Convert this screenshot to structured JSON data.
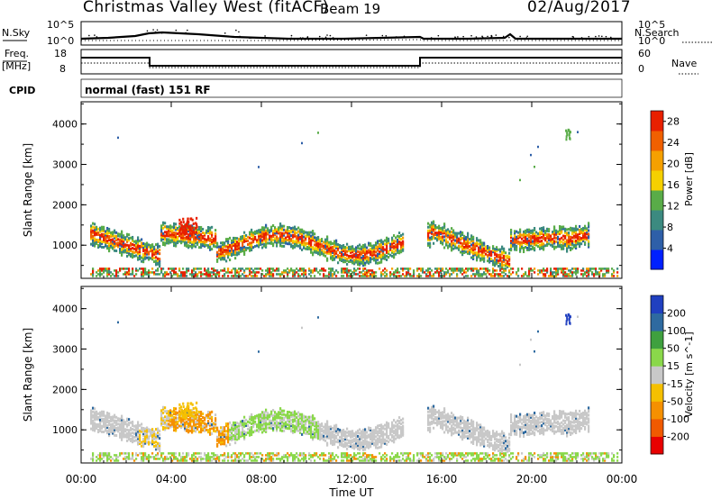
{
  "header": {
    "title": "Christmas Valley West (fitACF)",
    "beam": "Beam 19",
    "date": "02/Aug/2017"
  },
  "noise_panel": {
    "left_label": "N.Sky",
    "right_label": "N.Search",
    "left_ticks": [
      "10^5",
      "10^0"
    ],
    "right_ticks": [
      "10^5",
      "10^0"
    ]
  },
  "freq_panel": {
    "left_label_line1": "Freq.",
    "left_label_line2": "[MHz]",
    "right_label": "Nave",
    "left_ticks": [
      "18",
      "8"
    ],
    "right_ticks": [
      "60",
      "0"
    ]
  },
  "cpid": {
    "label": "CPID",
    "value": "normal (fast) 151 RF"
  },
  "colors": {
    "power": [
      "#0020ff",
      "#2e5fa8",
      "#3c8a80",
      "#59ac48",
      "#f5d000",
      "#f5a000",
      "#f06000",
      "#e82000"
    ],
    "velocity": [
      "#e80000",
      "#f05a00",
      "#f59000",
      "#f5c000",
      "#c8c8c8",
      "#8ad84a",
      "#3fa03f",
      "#2e6aa0",
      "#2040c0"
    ]
  },
  "chart_data": [
    {
      "type": "heatmap",
      "panel": "power",
      "xlabel": "",
      "ylabel": "Slant Range [km]",
      "x_range": [
        "00:00",
        "24:00"
      ],
      "ylim": [
        180,
        4550
      ],
      "yticks": [
        1000,
        2000,
        3000,
        4000
      ],
      "colorbar": {
        "label": "Power [dB]",
        "ticks": [
          4,
          8,
          12,
          16,
          20,
          24,
          28
        ],
        "range": [
          0,
          30
        ]
      }
    },
    {
      "type": "heatmap",
      "panel": "velocity",
      "xlabel": "Time UT",
      "ylabel": "Slant Range [km]",
      "x_range": [
        "00:00",
        "24:00"
      ],
      "xticks": [
        "00:00",
        "04:00",
        "08:00",
        "12:00",
        "16:00",
        "20:00",
        "00:00"
      ],
      "ylim": [
        180,
        4550
      ],
      "yticks": [
        1000,
        2000,
        3000,
        4000
      ],
      "colorbar": {
        "label": "Velocity [m s^-1]",
        "ticks": [
          200,
          100,
          50,
          15,
          -15,
          -50,
          -100,
          -200
        ]
      }
    }
  ]
}
